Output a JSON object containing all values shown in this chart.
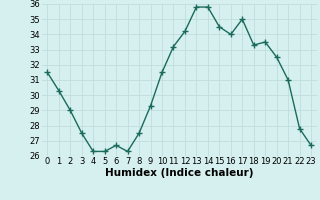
{
  "x": [
    0,
    1,
    2,
    3,
    4,
    5,
    6,
    7,
    8,
    9,
    10,
    11,
    12,
    13,
    14,
    15,
    16,
    17,
    18,
    19,
    20,
    21,
    22,
    23
  ],
  "y": [
    31.5,
    30.3,
    29.0,
    27.5,
    26.3,
    26.3,
    26.7,
    26.3,
    27.5,
    29.3,
    31.5,
    33.2,
    34.2,
    35.8,
    35.8,
    34.5,
    34.0,
    35.0,
    33.3,
    33.5,
    32.5,
    31.0,
    27.8,
    26.7
  ],
  "line_color": "#1a6b5a",
  "marker_color": "#1a6b5a",
  "bg_color": "#d6f0ef",
  "grid_color": "#c0dedd",
  "xlabel": "Humidex (Indice chaleur)",
  "ylim": [
    26,
    36
  ],
  "xlim": [
    -0.5,
    23.5
  ],
  "yticks": [
    26,
    27,
    28,
    29,
    30,
    31,
    32,
    33,
    34,
    35,
    36
  ],
  "xticks": [
    0,
    1,
    2,
    3,
    4,
    5,
    6,
    7,
    8,
    9,
    10,
    11,
    12,
    13,
    14,
    15,
    16,
    17,
    18,
    19,
    20,
    21,
    22,
    23
  ],
  "tick_fontsize": 6,
  "xlabel_fontsize": 7.5,
  "marker_size": 2.5,
  "linewidth": 1.0
}
